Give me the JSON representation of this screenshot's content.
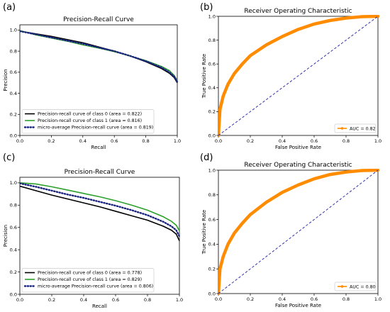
{
  "chart_data": [
    {
      "panel": "(a)",
      "type": "line",
      "title": "Precision-Recall Curve",
      "xlabel": "Recall",
      "ylabel": "Precision",
      "xlim": [
        0,
        1
      ],
      "ylim": [
        0,
        1.05
      ],
      "xticks": [
        "0.0",
        "0.2",
        "0.4",
        "0.6",
        "0.8",
        "1.0"
      ],
      "yticks": [
        "0.0",
        "0.2",
        "0.4",
        "0.6",
        "0.8",
        "1.0"
      ],
      "grid": false,
      "legend_position": "lower-left",
      "series": [
        {
          "name": "Precision-recall curve of class 0 (area = 0.822)",
          "color": "#000000",
          "style": "solid",
          "x": [
            0,
            0.1,
            0.2,
            0.3,
            0.4,
            0.5,
            0.6,
            0.7,
            0.8,
            0.9,
            0.95,
            0.98,
            1.0
          ],
          "y": [
            0.99,
            0.965,
            0.94,
            0.91,
            0.88,
            0.84,
            0.8,
            0.755,
            0.7,
            0.635,
            0.59,
            0.55,
            0.5
          ]
        },
        {
          "name": "Precision-recall curve of class 1 (area = 0.816)",
          "color": "#2ca02c",
          "style": "solid",
          "x": [
            0,
            0.1,
            0.2,
            0.3,
            0.4,
            0.5,
            0.6,
            0.7,
            0.8,
            0.9,
            0.95,
            0.98,
            1.0
          ],
          "y": [
            0.995,
            0.955,
            0.925,
            0.895,
            0.86,
            0.83,
            0.795,
            0.755,
            0.71,
            0.655,
            0.615,
            0.57,
            0.52
          ]
        },
        {
          "name": "micro-average Precision-recall curve (area = 0.819)",
          "color": "#1a237e",
          "style": "dotted",
          "x": [
            0,
            0.1,
            0.2,
            0.3,
            0.4,
            0.5,
            0.6,
            0.7,
            0.8,
            0.9,
            0.95,
            0.98,
            1.0
          ],
          "y": [
            0.99,
            0.96,
            0.93,
            0.9,
            0.87,
            0.835,
            0.8,
            0.755,
            0.705,
            0.645,
            0.6,
            0.56,
            0.51
          ]
        }
      ]
    },
    {
      "panel": "(b)",
      "type": "line",
      "title": "Receiver Operating Characteristic",
      "xlabel": "False Positive Rate",
      "ylabel": "True Positive Rate",
      "xlim": [
        0,
        1
      ],
      "ylim": [
        0,
        1
      ],
      "xticks": [
        "0.0",
        "0.2",
        "0.4",
        "0.6",
        "0.8",
        "1.0"
      ],
      "yticks": [
        "0.0",
        "0.2",
        "0.4",
        "0.6",
        "0.8",
        "1.0"
      ],
      "grid": false,
      "legend_position": "lower-right",
      "series": [
        {
          "name": "AUC = 0.82",
          "color": "#ff8c00",
          "style": "thick",
          "x": [
            0,
            0.01,
            0.03,
            0.06,
            0.1,
            0.15,
            0.2,
            0.3,
            0.4,
            0.5,
            0.6,
            0.7,
            0.8,
            0.9,
            1.0
          ],
          "y": [
            0,
            0.22,
            0.33,
            0.43,
            0.52,
            0.6,
            0.67,
            0.76,
            0.83,
            0.89,
            0.935,
            0.965,
            0.985,
            0.997,
            1.0
          ]
        },
        {
          "name": "",
          "color": "#1f1f9f",
          "style": "dashed",
          "x": [
            0,
            1
          ],
          "y": [
            0,
            1
          ]
        }
      ]
    },
    {
      "panel": "(c)",
      "type": "line",
      "title": "Precision-Recall Curve",
      "xlabel": "Recall",
      "ylabel": "Precision",
      "xlim": [
        0,
        1
      ],
      "ylim": [
        0,
        1.05
      ],
      "xticks": [
        "0.0",
        "0.2",
        "0.4",
        "0.6",
        "0.8",
        "1.0"
      ],
      "yticks": [
        "0.0",
        "0.2",
        "0.4",
        "0.6",
        "0.8",
        "1.0"
      ],
      "grid": false,
      "legend_position": "lower-left",
      "series": [
        {
          "name": "Precision-recall curve of class 0 (area = 0.778)",
          "color": "#000000",
          "style": "solid",
          "x": [
            0,
            0.1,
            0.2,
            0.3,
            0.4,
            0.5,
            0.6,
            0.7,
            0.8,
            0.9,
            0.95,
            0.98,
            1.0
          ],
          "y": [
            0.97,
            0.93,
            0.89,
            0.855,
            0.82,
            0.785,
            0.745,
            0.705,
            0.665,
            0.61,
            0.575,
            0.54,
            0.48
          ]
        },
        {
          "name": "Precision-recall curve of class 1 (area = 0.829)",
          "color": "#2ca02c",
          "style": "solid",
          "x": [
            0,
            0.1,
            0.2,
            0.3,
            0.4,
            0.5,
            0.6,
            0.7,
            0.8,
            0.9,
            0.95,
            0.98,
            1.0
          ],
          "y": [
            1.0,
            0.99,
            0.965,
            0.935,
            0.905,
            0.875,
            0.84,
            0.8,
            0.755,
            0.695,
            0.655,
            0.62,
            0.57
          ]
        },
        {
          "name": "micro-average Precision-recall curve (area = 0.806)",
          "color": "#1a237e",
          "style": "dotted",
          "x": [
            0,
            0.1,
            0.2,
            0.3,
            0.4,
            0.5,
            0.6,
            0.7,
            0.8,
            0.9,
            0.95,
            0.98,
            1.0
          ],
          "y": [
            0.995,
            0.965,
            0.93,
            0.895,
            0.865,
            0.83,
            0.795,
            0.755,
            0.71,
            0.65,
            0.61,
            0.575,
            0.52
          ]
        }
      ]
    },
    {
      "panel": "(d)",
      "type": "line",
      "title": "Receiver Operating Characteristic",
      "xlabel": "False Positive Rate",
      "ylabel": "True Positive Rate",
      "xlim": [
        0,
        1
      ],
      "ylim": [
        0,
        1
      ],
      "xticks": [
        "0.0",
        "0.2",
        "0.4",
        "0.6",
        "0.8",
        "1.0"
      ],
      "yticks": [
        "0.0",
        "0.2",
        "0.4",
        "0.6",
        "0.8",
        "1.0"
      ],
      "grid": false,
      "legend_position": "lower-right",
      "series": [
        {
          "name": "AUC = 0.80",
          "color": "#ff8c00",
          "style": "thick",
          "x": [
            0,
            0.01,
            0.03,
            0.06,
            0.1,
            0.15,
            0.2,
            0.3,
            0.4,
            0.5,
            0.6,
            0.7,
            0.8,
            0.9,
            1.0
          ],
          "y": [
            0,
            0.2,
            0.3,
            0.4,
            0.49,
            0.57,
            0.64,
            0.74,
            0.82,
            0.88,
            0.93,
            0.965,
            0.985,
            0.997,
            1.0
          ]
        },
        {
          "name": "",
          "color": "#1f1f9f",
          "style": "dashed",
          "x": [
            0,
            1
          ],
          "y": [
            0,
            1
          ]
        }
      ]
    }
  ]
}
